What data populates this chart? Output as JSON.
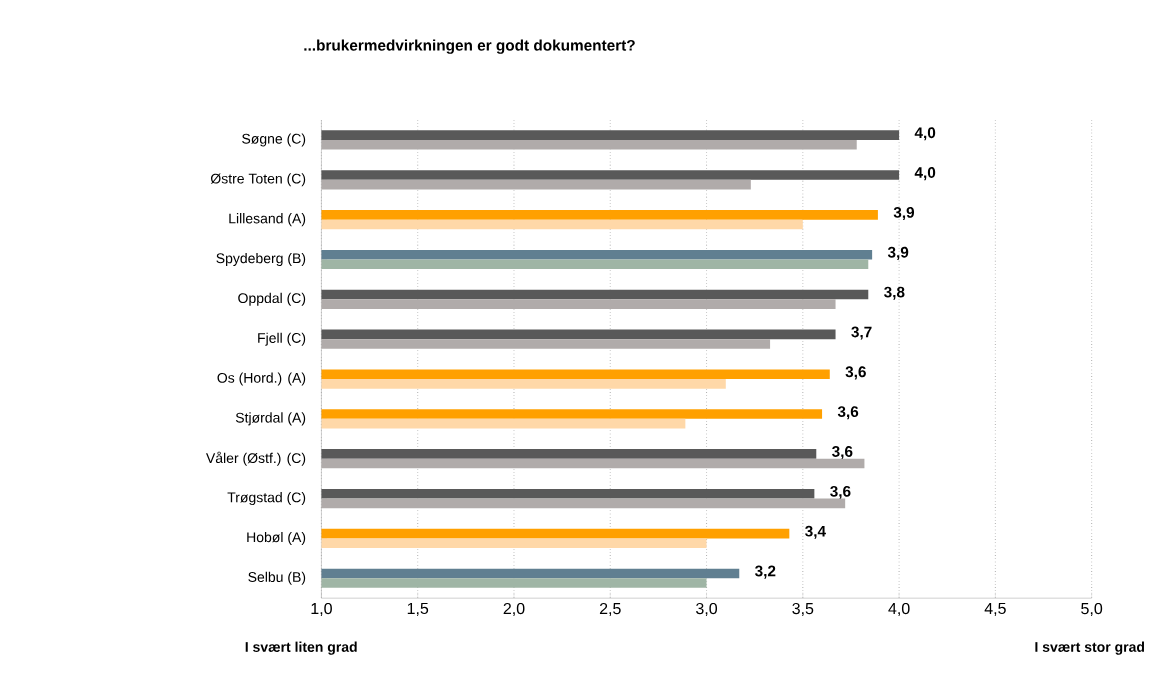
{
  "chart_data": {
    "type": "bar",
    "orientation": "horizontal",
    "title": "...brukermedvirkningen er godt dokumentert?",
    "categories": [
      "Søgne (C)",
      "Østre Toten (C)",
      "Lillesand (A)",
      "Spydeberg (B)",
      "Oppdal (C)",
      "Fjell (C)",
      "Os (Hord.) (A)",
      "Stjørdal (A)",
      "Våler (Østf.) (C)",
      "Trøgstad (C)",
      "Hobøl (A)",
      "Selbu (B)"
    ],
    "series": [
      {
        "values": [
          4.0,
          4.0,
          3.89,
          3.86,
          3.84,
          3.67,
          3.64,
          3.6,
          3.57,
          3.56,
          3.43,
          3.17
        ],
        "value_labels": [
          "4,0",
          "4,0",
          "3,9",
          "3,9",
          "3,8",
          "3,7",
          "3,6",
          "3,6",
          "3,6",
          "3,6",
          "3,4",
          "3,2"
        ],
        "colors": [
          "#595959",
          "#595959",
          "#ffa000",
          "#607f91",
          "#595959",
          "#595959",
          "#ffa000",
          "#ffa000",
          "#595959",
          "#595959",
          "#ffa000",
          "#607f91"
        ]
      },
      {
        "values": [
          3.78,
          3.23,
          3.5,
          3.84,
          3.67,
          3.33,
          3.1,
          2.89,
          3.82,
          3.72,
          3.0,
          3.0
        ],
        "colors": [
          "#b0abaa",
          "#b0abaa",
          "#ffd8a8",
          "#9fb5a5",
          "#b0abaa",
          "#b0abaa",
          "#ffd8a8",
          "#ffd8a8",
          "#b0abaa",
          "#b0abaa",
          "#ffd8a8",
          "#9fb5a5"
        ]
      }
    ],
    "xlim": [
      1.0,
      5.0
    ],
    "xticks": [
      {
        "value": 1.0,
        "label": "1,0"
      },
      {
        "value": 1.5,
        "label": "1,5"
      },
      {
        "value": 2.0,
        "label": "2,0"
      },
      {
        "value": 2.5,
        "label": "2,5"
      },
      {
        "value": 3.0,
        "label": "3,0"
      },
      {
        "value": 3.5,
        "label": "3,5"
      },
      {
        "value": 4.0,
        "label": "4,0"
      },
      {
        "value": 4.5,
        "label": "4,5"
      },
      {
        "value": 5.0,
        "label": "5,0"
      }
    ],
    "grid": "x",
    "annotations": [
      "I svært liten grad",
      "I svært stor grad"
    ]
  }
}
